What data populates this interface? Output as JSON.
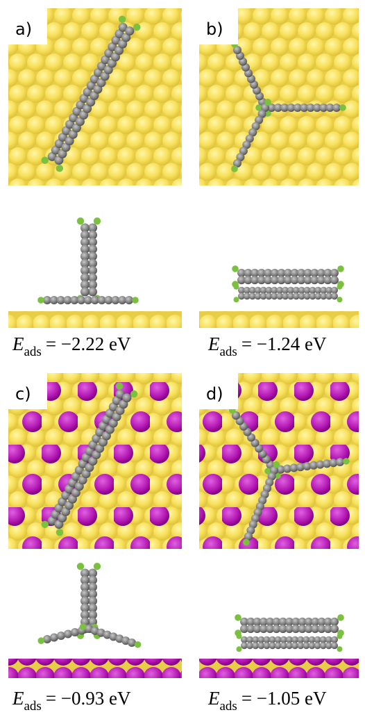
{
  "panels": [
    {
      "label": "a)",
      "energy": {
        "symbol": "E",
        "subscript": "ads",
        "value": "= −2.22 eV"
      }
    },
    {
      "label": "b)",
      "energy": {
        "symbol": "E",
        "subscript": "ads",
        "value": "= −1.24 eV"
      }
    },
    {
      "label": "c)",
      "energy": {
        "symbol": "E",
        "subscript": "ads",
        "value": "= −0.93 eV"
      }
    },
    {
      "label": "d)",
      "energy": {
        "symbol": "E",
        "subscript": "ads",
        "value": "= −1.05 eV"
      }
    }
  ]
}
